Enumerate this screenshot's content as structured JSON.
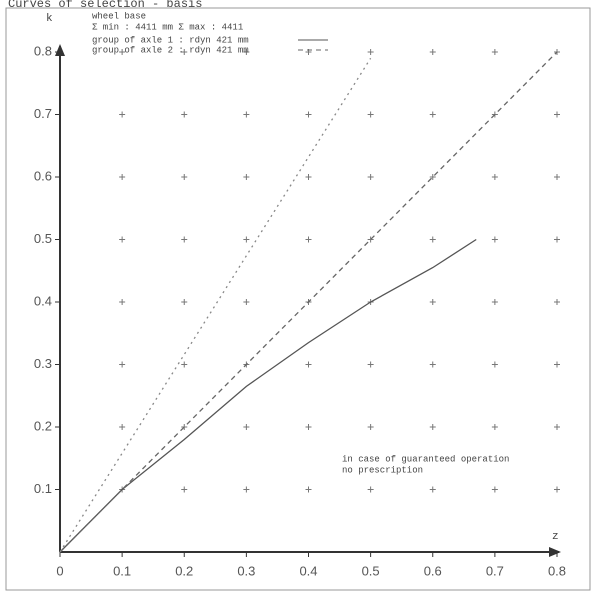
{
  "chart_data": {
    "type": "line",
    "title": "Curves of selection - basis",
    "xlabel": "z",
    "ylabel": "k",
    "xlim": [
      0,
      0.8
    ],
    "ylim": [
      0,
      0.8
    ],
    "xticks": [
      0,
      0.1,
      0.2,
      0.3,
      0.4,
      0.5,
      0.6,
      0.7,
      0.8
    ],
    "yticks": [
      0.1,
      0.2,
      0.3,
      0.4,
      0.5,
      0.6,
      0.7,
      0.8
    ],
    "grid": true,
    "legend_header": [
      "wheel base",
      "Σ min : 4411 mm   Σ max : 4411"
    ],
    "series": [
      {
        "name": "group of axle 1 : rdyn 421 mm",
        "color": "#555555",
        "dash": "solid",
        "x": [
          0,
          0.1,
          0.2,
          0.3,
          0.4,
          0.5,
          0.6,
          0.67
        ],
        "values": [
          0,
          0.1,
          0.18,
          0.265,
          0.335,
          0.4,
          0.455,
          0.5
        ]
      },
      {
        "name": "group of axle 2 : rdyn 421 mm",
        "color": "#666666",
        "dash": "dashed",
        "x": [
          0,
          0.8
        ],
        "values": [
          0,
          0.8
        ]
      },
      {
        "color": "#888888",
        "dash": "dotted",
        "x": [
          0,
          0.5
        ],
        "values": [
          0,
          0.79
        ]
      }
    ],
    "annotation": [
      "in case of guaranteed operation",
      "no prescription"
    ]
  }
}
